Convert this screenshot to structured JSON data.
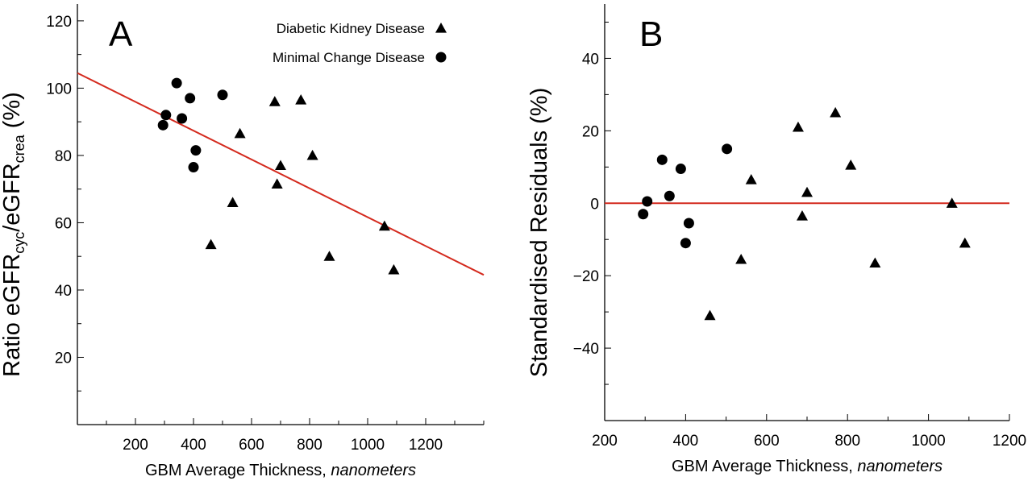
{
  "chart_data": [
    {
      "type": "scatter",
      "panel_label": "A",
      "xlabel": "GBM Average Thickness, ",
      "xlabel_italic": "nanometers",
      "ylabel_parts": [
        "Ratio eGFR",
        "cyc",
        "/eGFR",
        "crea",
        " (%)"
      ],
      "xlim": [
        0,
        1400
      ],
      "ylim": [
        0,
        125
      ],
      "xticks": [
        200,
        400,
        600,
        800,
        1000,
        1200
      ],
      "yticks": [
        20,
        40,
        60,
        80,
        100,
        120
      ],
      "legend_position": "top-right",
      "series": [
        {
          "name": "Diabetic Kidney Disease",
          "marker": "triangle",
          "points": [
            [
              460,
              53.5
            ],
            [
              535,
              66
            ],
            [
              560,
              86.5
            ],
            [
              680,
              96
            ],
            [
              688,
              71.5
            ],
            [
              700,
              77
            ],
            [
              770,
              96.5
            ],
            [
              810,
              80
            ],
            [
              868,
              50
            ],
            [
              1058,
              59
            ],
            [
              1090,
              46
            ]
          ]
        },
        {
          "name": "Minimal Change Disease",
          "marker": "circle",
          "points": [
            [
              295,
              89
            ],
            [
              305,
              92
            ],
            [
              342,
              101.5
            ],
            [
              360,
              91
            ],
            [
              388,
              97
            ],
            [
              400,
              76.5
            ],
            [
              408,
              81.5
            ],
            [
              500,
              98
            ]
          ]
        }
      ],
      "fit_line": {
        "color": "#d42a1e",
        "points": [
          [
            0,
            104.5
          ],
          [
            1400,
            44.5
          ]
        ]
      }
    },
    {
      "type": "scatter",
      "panel_label": "B",
      "xlabel": "GBM Average Thickness, ",
      "xlabel_italic": "nanometers",
      "ylabel": "Standardised Residuals (%)",
      "xlim": [
        200,
        1200
      ],
      "ylim": [
        -60,
        55
      ],
      "xticks": [
        200,
        400,
        600,
        800,
        1000,
        1200
      ],
      "yticks": [
        -40,
        -20,
        0,
        20,
        40
      ],
      "series": [
        {
          "name": "Diabetic Kidney Disease",
          "marker": "triangle",
          "points": [
            [
              460,
              -31
            ],
            [
              537,
              -15.5
            ],
            [
              562,
              6.5
            ],
            [
              678,
              21
            ],
            [
              688,
              -3.5
            ],
            [
              700,
              3
            ],
            [
              770,
              25
            ],
            [
              808,
              10.5
            ],
            [
              868,
              -16.5
            ],
            [
              1058,
              0
            ],
            [
              1090,
              -11
            ]
          ]
        },
        {
          "name": "Minimal Change Disease",
          "marker": "circle",
          "points": [
            [
              295,
              -3
            ],
            [
              305,
              0.5
            ],
            [
              342,
              12
            ],
            [
              360,
              2
            ],
            [
              388,
              9.5
            ],
            [
              400,
              -11
            ],
            [
              408,
              -5.5
            ],
            [
              502,
              15
            ]
          ]
        }
      ],
      "zero_line": {
        "color": "#d42a1e",
        "y": 0
      }
    }
  ]
}
